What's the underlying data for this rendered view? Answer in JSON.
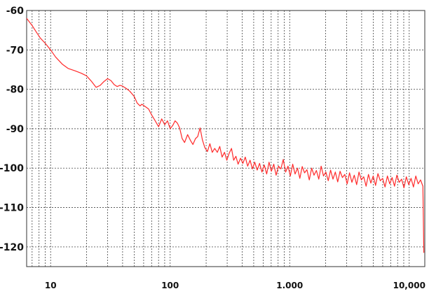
{
  "chart_data": {
    "type": "line",
    "title": "",
    "xlabel": "",
    "ylabel": "",
    "x_scale": "log",
    "xlim": [
      6.3,
      13500
    ],
    "ylim": [
      -125,
      -60
    ],
    "grid": true,
    "legend": "none",
    "x_tick_labels": [
      {
        "value": 10,
        "label": "10"
      },
      {
        "value": 100,
        "label": "100"
      },
      {
        "value": 1000,
        "label": "1.000"
      },
      {
        "value": 10000,
        "label": "10,000"
      }
    ],
    "y_tick_labels": [
      {
        "value": -60,
        "label": "-60"
      },
      {
        "value": -70,
        "label": "-70"
      },
      {
        "value": -80,
        "label": "-80"
      },
      {
        "value": -90,
        "label": "-90"
      },
      {
        "value": -100,
        "label": "-100"
      },
      {
        "value": -110,
        "label": "-110"
      },
      {
        "value": -120,
        "label": "-120"
      }
    ],
    "series": [
      {
        "color": "#ff2a2a",
        "points": [
          [
            6.3,
            -62.0
          ],
          [
            7.0,
            -63.8
          ],
          [
            7.6,
            -65.5
          ],
          [
            8.2,
            -67.0
          ],
          [
            9.0,
            -68.3
          ],
          [
            10.0,
            -70.0
          ],
          [
            11.0,
            -71.8
          ],
          [
            12.5,
            -73.6
          ],
          [
            14.0,
            -74.7
          ],
          [
            16.0,
            -75.3
          ],
          [
            18.0,
            -75.9
          ],
          [
            20.0,
            -76.6
          ],
          [
            22.0,
            -78.0
          ],
          [
            24.0,
            -79.5
          ],
          [
            26.0,
            -79.0
          ],
          [
            28.0,
            -78.0
          ],
          [
            30.0,
            -77.3
          ],
          [
            32.0,
            -77.8
          ],
          [
            34.0,
            -78.8
          ],
          [
            36.0,
            -79.3
          ],
          [
            38.0,
            -79.0
          ],
          [
            40.0,
            -79.2
          ],
          [
            43.0,
            -79.8
          ],
          [
            46.0,
            -80.5
          ],
          [
            50.0,
            -81.8
          ],
          [
            53.0,
            -83.5
          ],
          [
            56.0,
            -84.2
          ],
          [
            58.0,
            -83.8
          ],
          [
            62.0,
            -84.4
          ],
          [
            66.0,
            -85.0
          ],
          [
            70.0,
            -86.5
          ],
          [
            75.0,
            -88.0
          ],
          [
            80.0,
            -89.5
          ],
          [
            85.0,
            -87.5
          ],
          [
            90.0,
            -89.0
          ],
          [
            95.0,
            -88.0
          ],
          [
            100.0,
            -90.0
          ],
          [
            105.0,
            -89.2
          ],
          [
            110.0,
            -88.0
          ],
          [
            115.0,
            -88.6
          ],
          [
            120.0,
            -89.8
          ],
          [
            126.0,
            -92.5
          ],
          [
            132.0,
            -93.5
          ],
          [
            140.0,
            -91.5
          ],
          [
            148.0,
            -93.0
          ],
          [
            155.0,
            -94.0
          ],
          [
            163.0,
            -92.5
          ],
          [
            170.0,
            -92.0
          ],
          [
            178.0,
            -89.8
          ],
          [
            186.0,
            -92.8
          ],
          [
            195.0,
            -94.8
          ],
          [
            205.0,
            -95.8
          ],
          [
            215.0,
            -93.8
          ],
          [
            225.0,
            -96.0
          ],
          [
            236.0,
            -95.0
          ],
          [
            248.0,
            -96.0
          ],
          [
            260.0,
            -94.5
          ],
          [
            272.0,
            -97.2
          ],
          [
            285.0,
            -96.0
          ],
          [
            298.0,
            -98.0
          ],
          [
            312.0,
            -96.2
          ],
          [
            326.0,
            -95.0
          ],
          [
            340.0,
            -98.0
          ],
          [
            355.0,
            -97.0
          ],
          [
            370.0,
            -99.0
          ],
          [
            388.0,
            -97.5
          ],
          [
            406.0,
            -98.8
          ],
          [
            425.0,
            -97.2
          ],
          [
            445.0,
            -99.5
          ],
          [
            466.0,
            -98.0
          ],
          [
            488.0,
            -100.2
          ],
          [
            510.0,
            -98.5
          ],
          [
            535.0,
            -100.5
          ],
          [
            560.0,
            -98.8
          ],
          [
            586.0,
            -101.0
          ],
          [
            613.0,
            -99.2
          ],
          [
            642.0,
            -101.5
          ],
          [
            672.0,
            -98.5
          ],
          [
            703.0,
            -100.8
          ],
          [
            736.0,
            -99.0
          ],
          [
            770.0,
            -101.8
          ],
          [
            806.0,
            -99.5
          ],
          [
            844.0,
            -100.2
          ],
          [
            883.0,
            -97.8
          ],
          [
            925.0,
            -101.0
          ],
          [
            968.0,
            -99.5
          ],
          [
            1013.0,
            -102.0
          ],
          [
            1060.0,
            -99.0
          ],
          [
            1110.0,
            -101.5
          ],
          [
            1162.0,
            -100.0
          ],
          [
            1216.0,
            -102.6
          ],
          [
            1273.0,
            -99.6
          ],
          [
            1332.0,
            -101.2
          ],
          [
            1394.0,
            -100.4
          ],
          [
            1459.0,
            -103.0
          ],
          [
            1527.0,
            -100.0
          ],
          [
            1598.0,
            -101.8
          ],
          [
            1673.0,
            -100.6
          ],
          [
            1751.0,
            -102.8
          ],
          [
            1833.0,
            -99.5
          ],
          [
            1918.0,
            -102.0
          ],
          [
            2008.0,
            -101.0
          ],
          [
            2101.0,
            -103.2
          ],
          [
            2199.0,
            -100.5
          ],
          [
            2302.0,
            -102.8
          ],
          [
            2409.0,
            -101.0
          ],
          [
            2522.0,
            -103.5
          ],
          [
            2639.0,
            -100.8
          ],
          [
            2762.0,
            -102.4
          ],
          [
            2891.0,
            -101.6
          ],
          [
            3026.0,
            -104.0
          ],
          [
            3167.0,
            -101.2
          ],
          [
            3315.0,
            -103.6
          ],
          [
            3470.0,
            -101.8
          ],
          [
            3632.0,
            -104.2
          ],
          [
            3801.0,
            -101.0
          ],
          [
            3978.0,
            -103.0
          ],
          [
            4164.0,
            -102.2
          ],
          [
            4358.0,
            -104.6
          ],
          [
            4561.0,
            -101.6
          ],
          [
            4774.0,
            -103.8
          ],
          [
            4997.0,
            -102.0
          ],
          [
            5230.0,
            -104.4
          ],
          [
            5474.0,
            -101.4
          ],
          [
            5729.0,
            -103.2
          ],
          [
            5996.0,
            -102.6
          ],
          [
            6276.0,
            -104.8
          ],
          [
            6569.0,
            -102.0
          ],
          [
            6875.0,
            -104.0
          ],
          [
            7196.0,
            -102.4
          ],
          [
            7532.0,
            -104.6
          ],
          [
            7883.0,
            -101.8
          ],
          [
            8251.0,
            -103.6
          ],
          [
            8636.0,
            -102.8
          ],
          [
            9039.0,
            -105.0
          ],
          [
            9460.0,
            -102.2
          ],
          [
            9902.0,
            -104.2
          ],
          [
            10364.0,
            -102.6
          ],
          [
            10847.0,
            -104.8
          ],
          [
            11353.0,
            -102.0
          ],
          [
            11883.0,
            -104.0
          ],
          [
            12437.0,
            -103.0
          ],
          [
            13017.0,
            -104.6
          ],
          [
            13250.0,
            -121.5
          ]
        ]
      }
    ]
  }
}
